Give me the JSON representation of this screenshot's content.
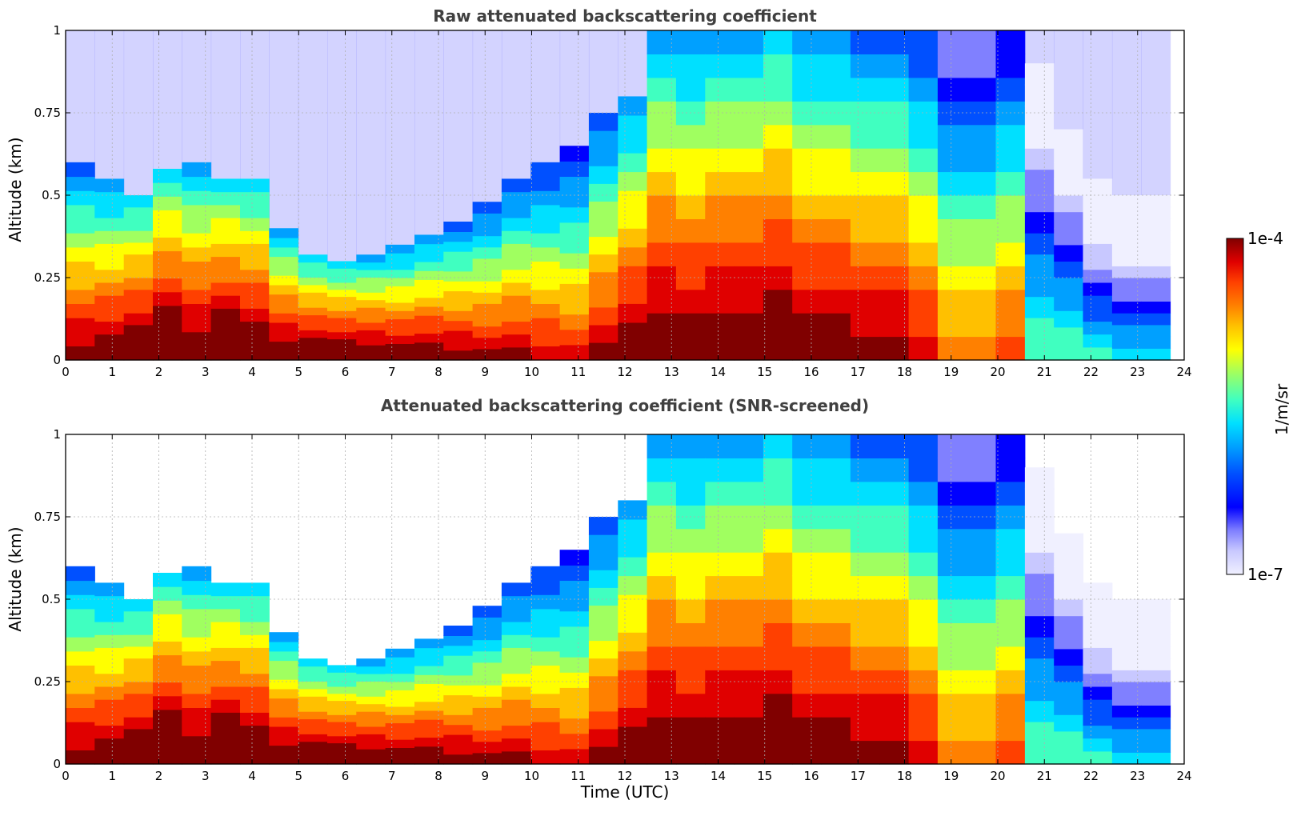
{
  "chart_data": [
    {
      "type": "heatmap",
      "title": "Raw attenuated backscattering coefficient",
      "xlabel": "",
      "ylabel": "Altitude (km)",
      "xlim": [
        0,
        24
      ],
      "ylim": [
        0,
        1
      ],
      "x_ticks": [
        "0",
        "1",
        "2",
        "3",
        "4",
        "5",
        "6",
        "7",
        "8",
        "9",
        "10",
        "11",
        "12",
        "13",
        "14",
        "15",
        "16",
        "17",
        "18",
        "19",
        "20",
        "21",
        "22",
        "23",
        "24"
      ],
      "y_ticks": [
        "0",
        "0.25",
        "0.5",
        "0.75",
        "1"
      ],
      "grid": true,
      "data_end_time": 23.7,
      "layer_top_km": [
        0.6,
        0.55,
        0.5,
        0.58,
        0.6,
        0.55,
        0.55,
        0.4,
        0.32,
        0.3,
        0.32,
        0.35,
        0.38,
        0.42,
        0.48,
        0.55,
        0.6,
        0.65,
        0.75,
        0.8,
        1.0,
        1.0,
        1.0,
        1.0,
        1.0,
        1.0,
        1.0,
        1.0,
        1.0,
        1.0,
        1.0,
        1.0,
        1.0,
        0.9,
        0.7,
        0.55,
        0.5,
        0.5
      ],
      "intensity_log10": [
        -4.6,
        -4.5,
        -4.3,
        -4.2,
        -4.4,
        -4.2,
        -4.3,
        -4.4,
        -4.3,
        -4.3,
        -4.4,
        -4.5,
        -4.5,
        -4.6,
        -4.7,
        -4.7,
        -4.8,
        -4.9,
        -4.7,
        -4.5,
        -4.4,
        -4.5,
        -4.4,
        -4.4,
        -4.3,
        -4.5,
        -4.5,
        -4.6,
        -4.6,
        -4.8,
        -5.2,
        -5.2,
        -5.0,
        -6.0,
        -6.0,
        -6.2,
        -6.3,
        -6.3
      ],
      "colorbar": {
        "min_label": "1e-7",
        "max_label": "1e-4",
        "unit": "1/m/sr"
      }
    },
    {
      "type": "heatmap",
      "title": "Attenuated backscattering coefficient (SNR-screened)",
      "xlabel": "Time (UTC)",
      "ylabel": "Altitude (km)",
      "xlim": [
        0,
        24
      ],
      "ylim": [
        0,
        1
      ],
      "x_ticks": [
        "0",
        "1",
        "2",
        "3",
        "4",
        "5",
        "6",
        "7",
        "8",
        "9",
        "10",
        "11",
        "12",
        "13",
        "14",
        "15",
        "16",
        "17",
        "18",
        "19",
        "20",
        "21",
        "22",
        "23",
        "24"
      ],
      "y_ticks": [
        "0",
        "0.25",
        "0.5",
        "0.75",
        "1"
      ],
      "grid": true,
      "data_end_time": 23.7,
      "layer_top_km": [
        0.6,
        0.55,
        0.5,
        0.58,
        0.6,
        0.55,
        0.55,
        0.4,
        0.32,
        0.3,
        0.32,
        0.35,
        0.38,
        0.42,
        0.48,
        0.55,
        0.6,
        0.65,
        0.75,
        0.8,
        1.0,
        1.0,
        1.0,
        1.0,
        1.0,
        1.0,
        1.0,
        1.0,
        1.0,
        1.0,
        1.0,
        1.0,
        1.0,
        0.9,
        0.7,
        0.55,
        0.5,
        0.5
      ],
      "intensity_log10": [
        -4.6,
        -4.5,
        -4.3,
        -4.2,
        -4.4,
        -4.2,
        -4.3,
        -4.4,
        -4.3,
        -4.3,
        -4.4,
        -4.5,
        -4.5,
        -4.6,
        -4.7,
        -4.7,
        -4.8,
        -4.9,
        -4.7,
        -4.5,
        -4.4,
        -4.5,
        -4.4,
        -4.4,
        -4.3,
        -4.5,
        -4.5,
        -4.6,
        -4.6,
        -4.8,
        -5.2,
        -5.2,
        -5.0,
        -6.0,
        -6.0,
        -6.2,
        -6.3,
        -6.3
      ],
      "colorbar": {
        "min_label": "1e-7",
        "max_label": "1e-4",
        "unit": "1/m/sr"
      }
    }
  ],
  "colorbar": {
    "max_label": "1e-4",
    "min_label": "1e-7",
    "unit": "1/m/sr",
    "colors": [
      "#f0f0ff",
      "#c8c8ff",
      "#8080ff",
      "#0000ff",
      "#0050ff",
      "#00a0ff",
      "#00e0ff",
      "#40ffc0",
      "#a0ff60",
      "#ffff00",
      "#ffc000",
      "#ff8000",
      "#ff4000",
      "#e00000",
      "#800000"
    ]
  }
}
